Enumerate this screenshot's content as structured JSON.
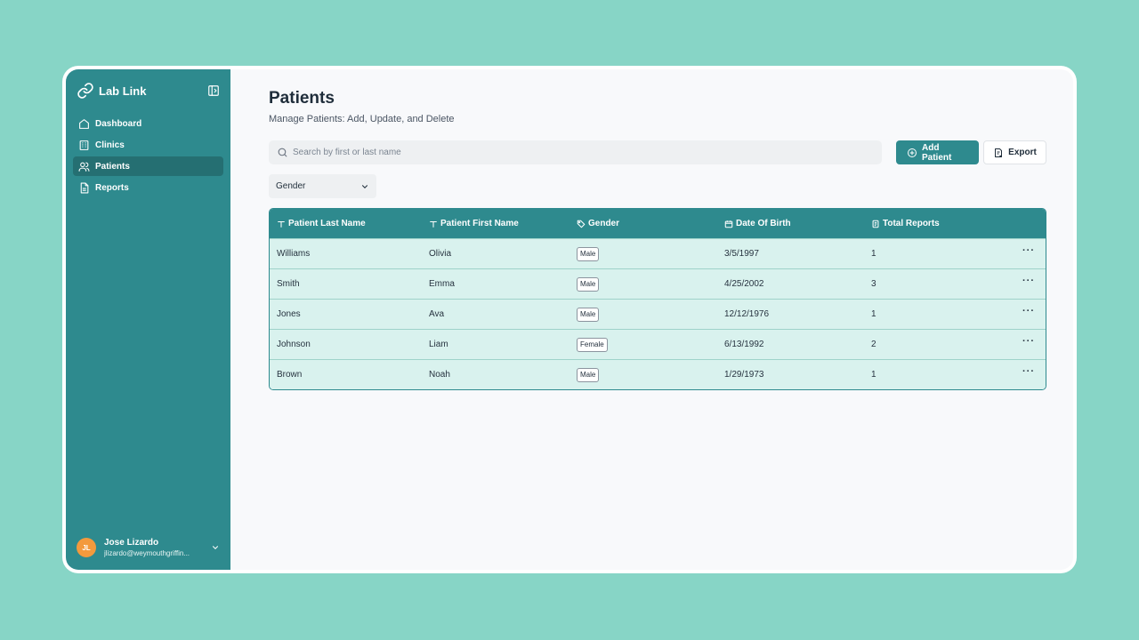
{
  "app": {
    "name": "Lab Link"
  },
  "sidebar": {
    "items": [
      {
        "label": "Dashboard",
        "icon": "home-icon"
      },
      {
        "label": "Clinics",
        "icon": "building-icon"
      },
      {
        "label": "Patients",
        "icon": "users-icon",
        "active": true
      },
      {
        "label": "Reports",
        "icon": "file-icon"
      }
    ],
    "user": {
      "initials": "JL",
      "name": "Jose Lizardo",
      "email": "jlizardo@weymouthgriffin..."
    }
  },
  "page": {
    "title": "Patients",
    "subtitle": "Manage Patients: Add, Update, and Delete"
  },
  "toolbar": {
    "search_placeholder": "Search by first or last name",
    "add_label": "Add Patient",
    "export_label": "Export"
  },
  "filters": {
    "gender_label": "Gender"
  },
  "table": {
    "columns": [
      "Patient Last Name",
      "Patient First Name",
      "Gender",
      "Date Of Birth",
      "Total Reports"
    ],
    "rows": [
      {
        "last": "Williams",
        "first": "Olivia",
        "gender": "Male",
        "dob": "3/5/1997",
        "reports": "1"
      },
      {
        "last": "Smith",
        "first": "Emma",
        "gender": "Male",
        "dob": "4/25/2002",
        "reports": "3"
      },
      {
        "last": "Jones",
        "first": "Ava",
        "gender": "Male",
        "dob": "12/12/1976",
        "reports": "1"
      },
      {
        "last": "Johnson",
        "first": "Liam",
        "gender": "Female",
        "dob": "6/13/1992",
        "reports": "2"
      },
      {
        "last": "Brown",
        "first": "Noah",
        "gender": "Male",
        "dob": "1/29/1973",
        "reports": "1"
      }
    ],
    "row_action": "···"
  },
  "colors": {
    "background": "#87d5c6",
    "brand": "#2e8a8e",
    "row": "#d9f2ee",
    "avatar": "#f39a3d"
  }
}
